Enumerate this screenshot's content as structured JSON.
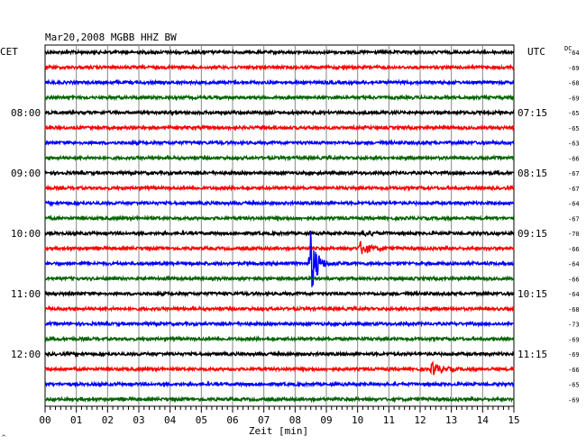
{
  "chart_data": {
    "type": "line",
    "title": "Mar20,2008   MGBB HHZ BW",
    "xlabel": "Zeit [min]",
    "x_ticks": [
      "00",
      "01",
      "02",
      "03",
      "04",
      "05",
      "06",
      "07",
      "08",
      "09",
      "10",
      "11",
      "12",
      "13",
      "14",
      "15"
    ],
    "xlim": [
      0,
      15
    ],
    "left_timezone": "CET",
    "right_timezone": "UTC",
    "dc_header": "DC",
    "left_hour_labels": [
      {
        "row": 4,
        "text": "08:00"
      },
      {
        "row": 8,
        "text": "09:00"
      },
      {
        "row": 12,
        "text": "10:00"
      },
      {
        "row": 16,
        "text": "11:00"
      },
      {
        "row": 20,
        "text": "12:00"
      }
    ],
    "right_hour_labels": [
      {
        "row": 4,
        "text": "07:15"
      },
      {
        "row": 8,
        "text": "08:15"
      },
      {
        "row": 12,
        "text": "09:15"
      },
      {
        "row": 16,
        "text": "10:15"
      },
      {
        "row": 20,
        "text": "11:15"
      }
    ],
    "dc_values": [
      "-64",
      "-69",
      "-68",
      "-69",
      "-65",
      "-65",
      "-63",
      "-66",
      "-67",
      "-67",
      "-64",
      "-67",
      "-70",
      "-66",
      "-64",
      "-66",
      "-64",
      "-68",
      "-73",
      "-69",
      "-69",
      "-66",
      "-65",
      "-69"
    ],
    "trace_colors": [
      "#000000",
      "#ff0000",
      "#0000ff",
      "#006400"
    ],
    "rows": 24,
    "events": [
      {
        "row": 14,
        "minute": 8.5,
        "amplitude": "large",
        "color": "#006400"
      },
      {
        "row": 13,
        "minute": 10.1,
        "amplitude": "small",
        "color": "#0000ff"
      },
      {
        "row": 12,
        "minute": 10.2,
        "amplitude": "tiny",
        "color": "#ff0000"
      },
      {
        "row": 21,
        "minute": 12.4,
        "amplitude": "small",
        "color": "#ff0000"
      }
    ],
    "grid": true,
    "corner_mark": "^"
  }
}
